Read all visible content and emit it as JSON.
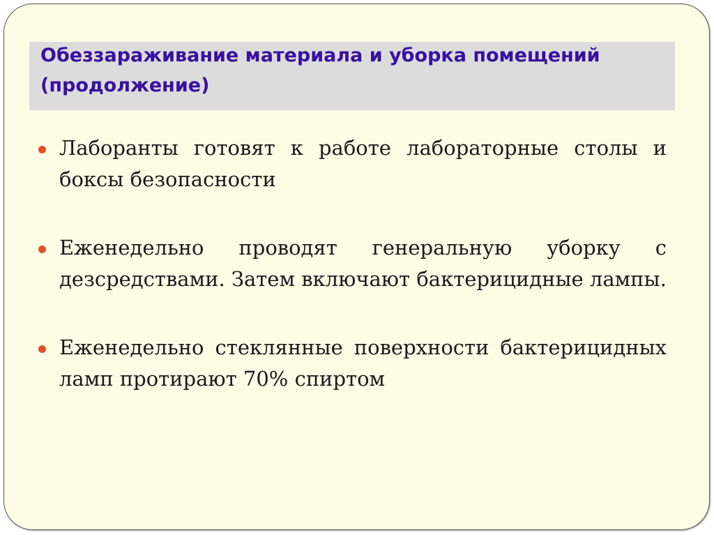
{
  "title": "Обеззараживание материала и уборка помещений (продолжение)",
  "colors": {
    "title": "#3a10a0",
    "bullet": "#e0502a",
    "background": "#fdfde6",
    "header_band": "#dcdcdc"
  },
  "bullets": [
    "Лаборанты готовят к работе лабораторные столы и боксы безопасности",
    "Еженедельно проводят генеральную уборку с дезсредствами. Затем включают бактерицидные лампы.",
    "Еженедельно стеклянные поверхности бактерицидных ламп протирают 70% спиртом"
  ]
}
